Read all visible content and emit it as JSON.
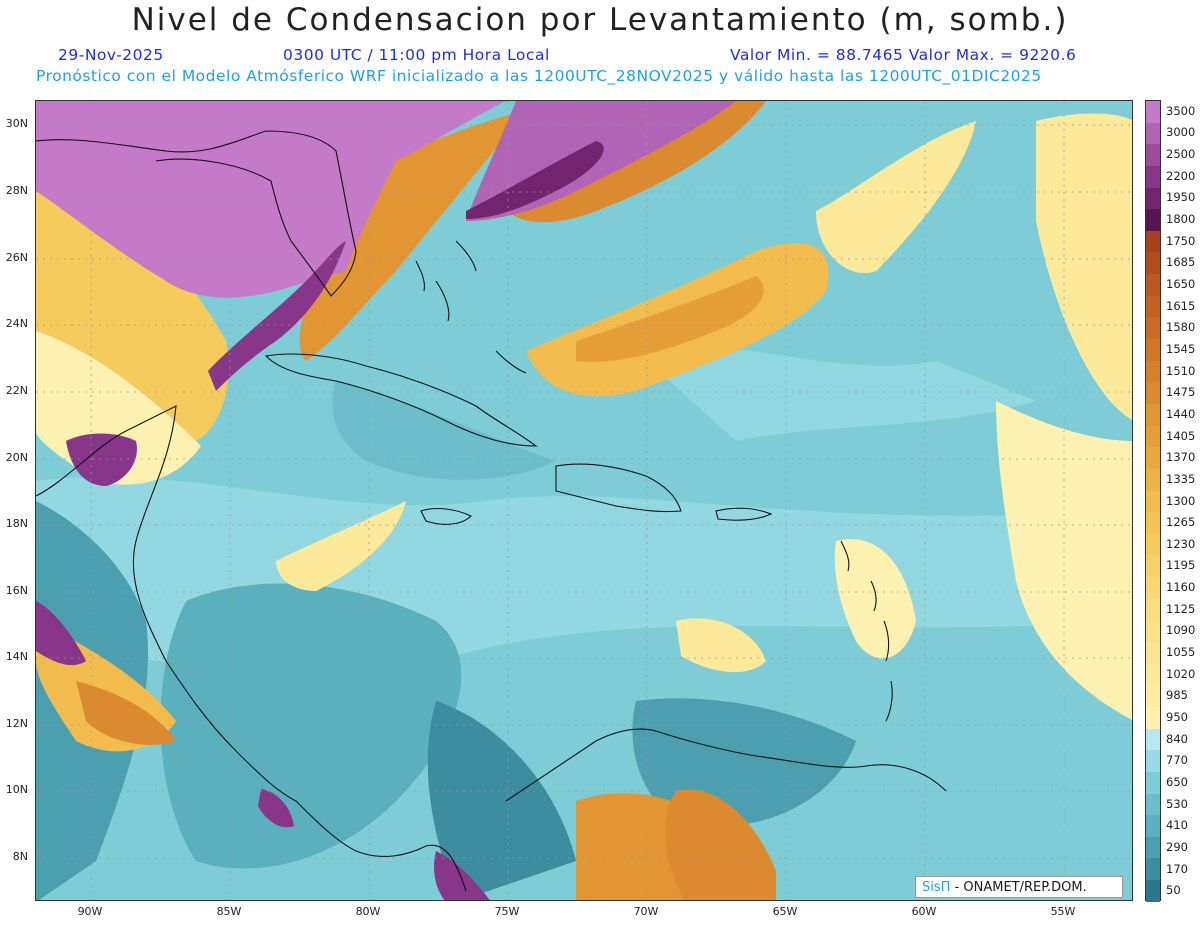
{
  "header": {
    "title": "Nivel de Condensacion por Levantamiento (m, somb.)",
    "date": "29-Nov-2025",
    "time": "0300 UTC / 11:00 pm Hora Local",
    "minmax": "Valor Min. = 88.7465  Valor Max. = 9220.6",
    "forecast": "Pronóstico con el Modelo Atmósferico WRF inicializado a las 1200UTC_28NOV2025 y válido hasta las  1200UTC_01DIC2025"
  },
  "axes": {
    "lat_labels": [
      "30N",
      "28N",
      "26N",
      "24N",
      "22N",
      "20N",
      "18N",
      "16N",
      "14N",
      "12N",
      "10N",
      "8N"
    ],
    "lon_labels": [
      "90W",
      "85W",
      "80W",
      "75W",
      "70W",
      "65W",
      "60W",
      "55W"
    ]
  },
  "legend": {
    "labels": [
      "3500",
      "3000",
      "2500",
      "2200",
      "1950",
      "1800",
      "1750",
      "1685",
      "1650",
      "1615",
      "1580",
      "1545",
      "1510",
      "1475",
      "1440",
      "1405",
      "1370",
      "1335",
      "1300",
      "1265",
      "1230",
      "1195",
      "1160",
      "1125",
      "1090",
      "1055",
      "1020",
      "985",
      "950",
      "840",
      "770",
      "650",
      "530",
      "410",
      "290",
      "170",
      "50"
    ],
    "colors": [
      "#c57ac9",
      "#b163b5",
      "#9e4a9f",
      "#87368a",
      "#72246f",
      "#5a1450",
      "#a8401f",
      "#b24c1f",
      "#bd5820",
      "#c46222",
      "#ca6c25",
      "#d07628",
      "#d6802b",
      "#dc8a2f",
      "#e19533",
      "#e69f38",
      "#eaa93e",
      "#eeb345",
      "#f1bc4d",
      "#f4c455",
      "#f6cb5e",
      "#f8d268",
      "#f9d872",
      "#fadd7c",
      "#fbe186",
      "#fbe590",
      "#fce99a",
      "#fcedA5",
      "#fcf1b0",
      "#b8e8ee",
      "#98dbe3",
      "#7ecdd6",
      "#6cbfca",
      "#5bb0bd",
      "#4b9fae",
      "#3c8d9e",
      "#2b768a"
    ]
  },
  "credit": {
    "logo": "SisΠ",
    "text": " - ONAMET/REP.DOM."
  }
}
